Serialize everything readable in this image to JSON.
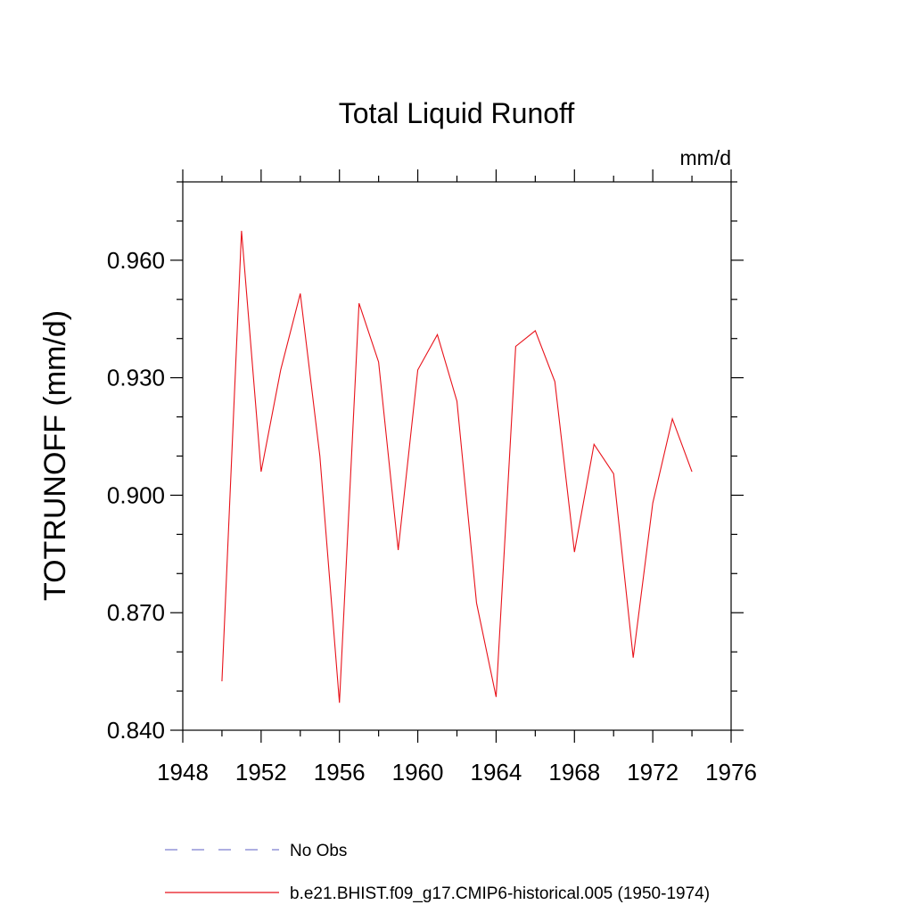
{
  "chart_data": {
    "type": "line",
    "title": "Total Liquid Runoff",
    "units_label": "mm/d",
    "ylabel": "TOTRUNOFF  (mm/d)",
    "xlabel": "",
    "xlim": [
      1948,
      1976
    ],
    "ylim": [
      0.84,
      0.98
    ],
    "x_ticks": [
      1948,
      1952,
      1956,
      1960,
      1964,
      1968,
      1972,
      1976
    ],
    "x_tick_labels": [
      "1948",
      "1952",
      "1956",
      "1960",
      "1964",
      "1968",
      "1972",
      "1976"
    ],
    "y_ticks": [
      0.84,
      0.87,
      0.9,
      0.93,
      0.96
    ],
    "y_tick_labels": [
      "0.840",
      "0.870",
      "0.900",
      "0.930",
      "0.960"
    ],
    "y_minor_step": 0.01,
    "x_minor_step": 2,
    "grid": false,
    "legend_position": "bottom",
    "series": [
      {
        "name": "No Obs",
        "color": "#7d7fd0",
        "style": "dashed",
        "x": [],
        "y": []
      },
      {
        "name": "b.e21.BHIST.f09_g17.CMIP6-historical.005 (1950-1974)",
        "color": "#e8121a",
        "style": "solid",
        "x": [
          1950,
          1951,
          1952,
          1953,
          1954,
          1955,
          1956,
          1957,
          1958,
          1959,
          1960,
          1961,
          1962,
          1963,
          1964,
          1965,
          1966,
          1967,
          1968,
          1969,
          1970,
          1971,
          1972,
          1973,
          1974
        ],
        "y": [
          0.8525,
          0.9675,
          0.906,
          0.932,
          0.9515,
          0.91,
          0.847,
          0.949,
          0.934,
          0.886,
          0.932,
          0.941,
          0.924,
          0.8725,
          0.8485,
          0.938,
          0.942,
          0.929,
          0.8855,
          0.913,
          0.9055,
          0.8585,
          0.898,
          0.9195,
          0.906
        ]
      }
    ]
  }
}
